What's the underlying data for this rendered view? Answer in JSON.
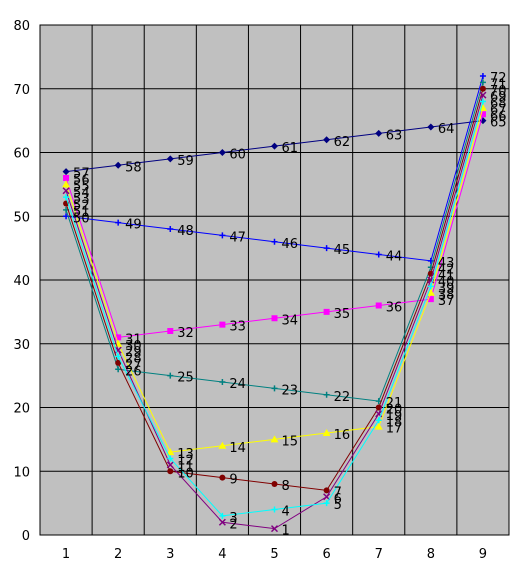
{
  "chart_data": {
    "type": "line",
    "title": "",
    "xlabel": "",
    "ylabel": "",
    "x": [
      1,
      2,
      3,
      4,
      5,
      6,
      7,
      8,
      9
    ],
    "xlim": [
      0.5,
      9.5
    ],
    "ylim": [
      0,
      80
    ],
    "y_ticks": [
      0,
      10,
      20,
      30,
      40,
      50,
      60,
      70,
      80
    ],
    "grid": true,
    "legend": "none",
    "plot_background": "#c0c0c0",
    "series": [
      {
        "color": "#000080",
        "marker": "diamond",
        "points": [
          [
            1,
            57,
            "57"
          ],
          [
            2,
            58,
            "58"
          ],
          [
            3,
            59,
            "59"
          ],
          [
            4,
            60,
            "60"
          ],
          [
            5,
            61,
            "61"
          ],
          [
            6,
            62,
            "62"
          ],
          [
            7,
            63,
            "63"
          ],
          [
            8,
            64,
            "64"
          ],
          [
            9,
            65,
            "65"
          ]
        ]
      },
      {
        "color": "#0000ff",
        "marker": "plus",
        "points": [
          [
            1,
            50,
            "50"
          ],
          [
            2,
            49,
            "49"
          ],
          [
            3,
            48,
            "48"
          ],
          [
            4,
            47,
            "47"
          ],
          [
            5,
            46,
            "46"
          ],
          [
            6,
            45,
            "45"
          ],
          [
            7,
            44,
            "44"
          ],
          [
            8,
            43,
            "43"
          ],
          [
            9,
            72,
            "72"
          ]
        ]
      },
      {
        "color": "#ff00ff",
        "marker": "square",
        "points": [
          [
            1,
            56,
            "56"
          ],
          [
            2,
            31,
            "31"
          ],
          [
            3,
            32,
            "32"
          ],
          [
            4,
            33,
            "33"
          ],
          [
            5,
            34,
            "34"
          ],
          [
            6,
            35,
            "35"
          ],
          [
            7,
            36,
            "36"
          ],
          [
            8,
            37,
            "37"
          ],
          [
            9,
            66,
            "66"
          ]
        ]
      },
      {
        "color": "#008080",
        "marker": "plus",
        "points": [
          [
            1,
            51,
            "51"
          ],
          [
            2,
            26,
            "26"
          ],
          [
            3,
            25,
            "25"
          ],
          [
            4,
            24,
            "24"
          ],
          [
            5,
            23,
            "23"
          ],
          [
            6,
            22,
            "22"
          ],
          [
            7,
            21,
            "21"
          ],
          [
            8,
            42,
            "42"
          ],
          [
            9,
            71,
            "71"
          ]
        ]
      },
      {
        "color": "#ffff00",
        "marker": "triangle",
        "points": [
          [
            1,
            55,
            "55"
          ],
          [
            2,
            30,
            "30"
          ],
          [
            3,
            13,
            "13"
          ],
          [
            4,
            14,
            "14"
          ],
          [
            5,
            15,
            "15"
          ],
          [
            6,
            16,
            "16"
          ],
          [
            7,
            17,
            "17"
          ],
          [
            8,
            38,
            "38"
          ],
          [
            9,
            67,
            "67"
          ]
        ]
      },
      {
        "color": "#800000",
        "marker": "circle",
        "points": [
          [
            1,
            52,
            "52"
          ],
          [
            2,
            27,
            "27"
          ],
          [
            3,
            10,
            "10"
          ],
          [
            4,
            9,
            "9"
          ],
          [
            5,
            8,
            "8"
          ],
          [
            6,
            7,
            "7"
          ],
          [
            7,
            20,
            "20"
          ],
          [
            8,
            41,
            "41"
          ],
          [
            9,
            70,
            "70"
          ]
        ]
      },
      {
        "color": "#800080",
        "marker": "x",
        "points": [
          [
            1,
            54,
            "54"
          ],
          [
            2,
            29,
            "29"
          ],
          [
            3,
            11,
            "11"
          ],
          [
            4,
            2,
            "2"
          ],
          [
            5,
            1,
            "1"
          ],
          [
            6,
            6,
            "6"
          ],
          [
            7,
            19,
            "19"
          ],
          [
            8,
            40,
            "40"
          ],
          [
            9,
            69,
            "69"
          ]
        ]
      },
      {
        "color": "#00ffff",
        "marker": "plus",
        "points": [
          [
            1,
            53,
            "53"
          ],
          [
            2,
            28,
            "28"
          ],
          [
            3,
            12,
            "12"
          ],
          [
            4,
            3,
            "3"
          ],
          [
            5,
            4,
            "4"
          ],
          [
            6,
            5,
            "5"
          ],
          [
            7,
            18,
            "18"
          ],
          [
            8,
            39,
            "39"
          ],
          [
            9,
            68,
            "68"
          ]
        ]
      }
    ]
  }
}
